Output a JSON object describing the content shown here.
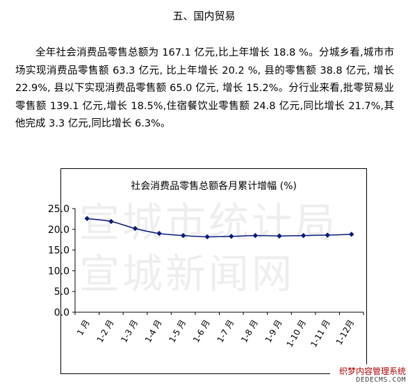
{
  "section_heading": "五、国内贸易",
  "paragraph": "全年社会消费品零售总额为 167.1 亿元,比上年增长 18.8 %。分城乡看,城市市场实现消费品零售额 63.3 亿元, 比上年增长 20.2 %, 县的零售额 38.8 亿元, 增长 22.9%, 县以下实现消费品零售额 65.0  亿元, 增长 15.2%。分行业来看,批零贸易业零售额 139.1 亿元,增长 18.5%,住宿餐饮业零售额 24.8 亿元,同比增长 21.7%,其他完成 3.3 亿元,同比增长 6.3%。",
  "watermark": {
    "line1": "宣城市统计局",
    "line2": "宣城新闻网"
  },
  "site_stamp": {
    "line1": "织梦内容管理系统",
    "line2": "DEDECMS.COM"
  },
  "chart_data": {
    "type": "line",
    "title": "社会消费品零售总额各月累计增幅 (%)",
    "categories": [
      "1 月",
      "1-2 月",
      "1-3 月",
      "1-4 月",
      "1-5 月",
      "1-6 月",
      "1-7 月",
      "1-8 月",
      "1-9 月",
      "1-10 月",
      "1-11 月",
      "1-12月"
    ],
    "values": [
      22.6,
      21.9,
      20.2,
      19.0,
      18.5,
      18.2,
      18.3,
      18.5,
      18.4,
      18.5,
      18.6,
      18.8
    ],
    "ylim": [
      0,
      25
    ],
    "yticks": [
      "0.0",
      "5.0",
      "10.0",
      "15.0",
      "20.0",
      "25.0"
    ],
    "grid": false,
    "legend": "none",
    "line_color": "#0a1a7a",
    "marker": "diamond"
  }
}
